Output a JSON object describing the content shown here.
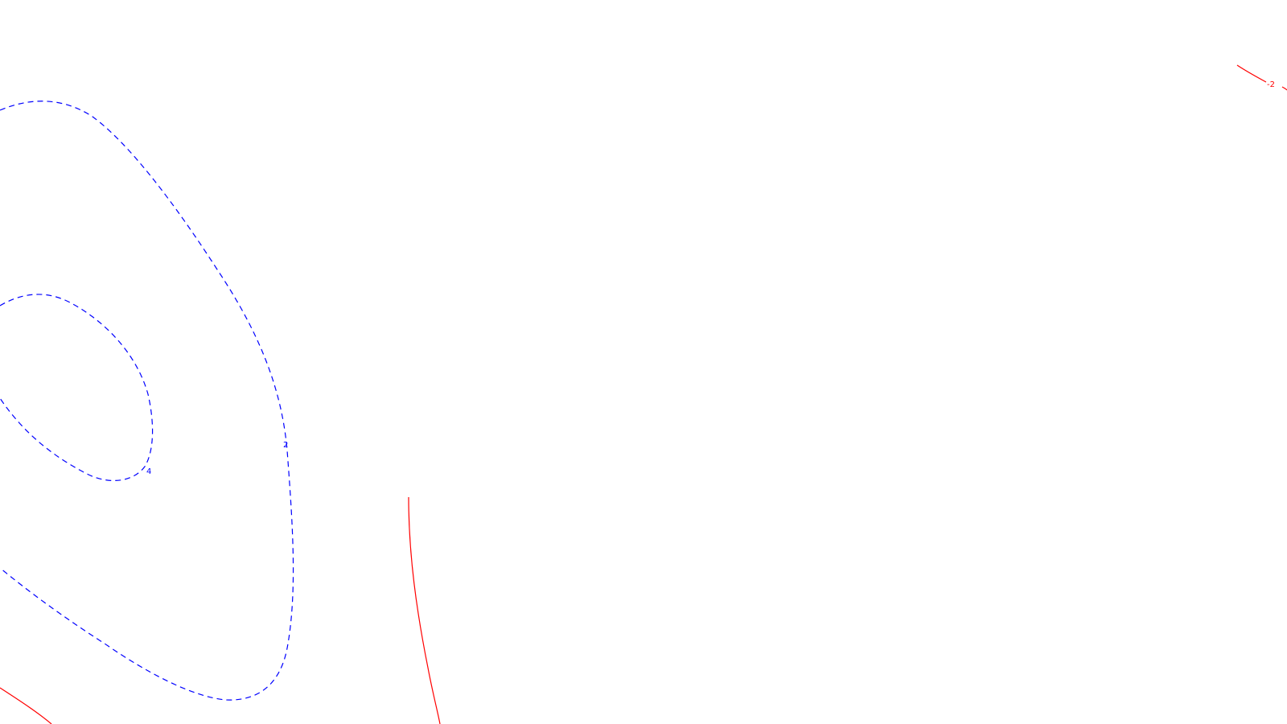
{
  "map": {
    "background_color": "#ffffff",
    "contours": [
      {
        "id": "contour-plus-4",
        "label": "4",
        "style": "dashed",
        "color": "#0000ff"
      },
      {
        "id": "contour-plus-2",
        "label": "2",
        "style": "dashed",
        "color": "#0000ff"
      },
      {
        "id": "contour-minus-2",
        "label": "-2",
        "style": "solid",
        "color": "#ff0000"
      }
    ]
  }
}
